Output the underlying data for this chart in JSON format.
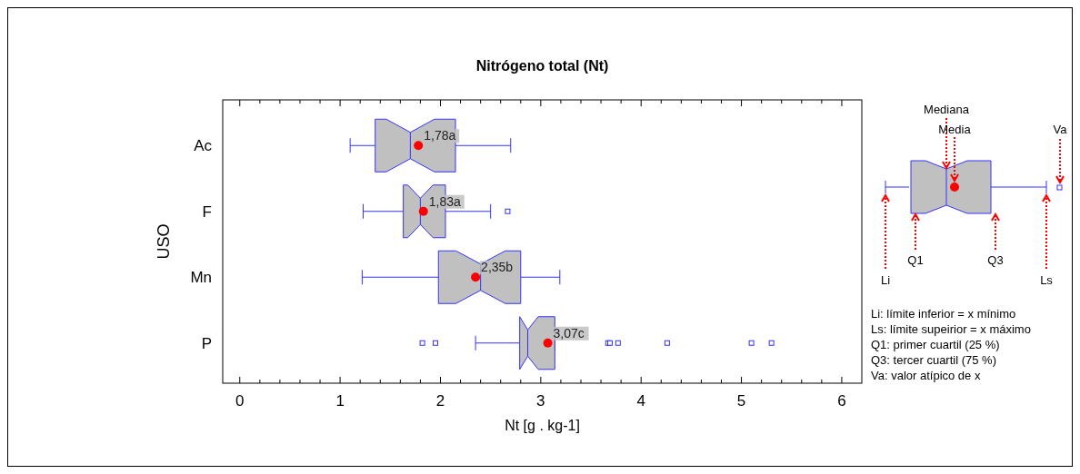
{
  "chart_data": {
    "type": "box",
    "title": "Nitrógeno total (Nt)",
    "xlabel": "Nt [g . kg-1]",
    "ylabel": "USO",
    "orientation": "horizontal",
    "categories": [
      "Ac",
      "F",
      "Mn",
      "P"
    ],
    "color": "#c0c0c0",
    "boxes": [
      {
        "low": 1.1,
        "q1": 1.35,
        "median": 1.7,
        "q3": 2.15,
        "high": 2.7,
        "mean": 1.78
      },
      {
        "low": 1.23,
        "q1": 1.63,
        "median": 1.8,
        "q3": 2.05,
        "high": 2.5,
        "mean": 1.83,
        "outliers": [
          2.67
        ]
      },
      {
        "low": 1.22,
        "q1": 1.98,
        "median": 2.4,
        "q3": 2.8,
        "high": 3.19,
        "mean": 2.35
      },
      {
        "low": 2.35,
        "q1": 2.79,
        "median": 2.87,
        "q3": 3.14,
        "high": 3.14,
        "mean": 3.07,
        "outliers": [
          1.82,
          1.95,
          3.67,
          3.69,
          3.77,
          4.26,
          5.1,
          5.3
        ]
      }
    ],
    "xlim": [
      -0.17,
      6.2
    ],
    "xticks": [
      0,
      {
        "value": 0.2,
        "label": null
      },
      {
        "value": 0.4,
        "label": null
      },
      {
        "value": 0.6,
        "label": null
      },
      {
        "value": 0.8,
        "label": null
      },
      1,
      {
        "value": 1.2,
        "label": null
      },
      {
        "value": 1.4,
        "label": null
      },
      {
        "value": 1.6,
        "label": null
      },
      {
        "value": 1.8,
        "label": null
      },
      2,
      {
        "value": 2.2,
        "label": null
      },
      {
        "value": 2.4,
        "label": null
      },
      {
        "value": 2.6,
        "label": null
      },
      {
        "value": 2.8,
        "label": null
      },
      3,
      {
        "value": 3.2,
        "label": null
      },
      {
        "value": 3.4,
        "label": null
      },
      {
        "value": 3.6,
        "label": null
      },
      {
        "value": 3.8,
        "label": null
      },
      4,
      {
        "value": 4.2,
        "label": null
      },
      {
        "value": 4.4,
        "label": null
      },
      {
        "value": 4.6,
        "label": null
      },
      {
        "value": 4.8,
        "label": null
      },
      5,
      {
        "value": 5.2,
        "label": null
      },
      {
        "value": 5.4,
        "label": null
      },
      {
        "value": 5.6,
        "label": null
      },
      {
        "value": 5.8,
        "label": null
      },
      6
    ],
    "annotations": [
      "1,78a",
      "1,83a",
      "2,35b",
      "3,07c",
      "Mediana",
      "Media",
      "Va",
      "Q1",
      "Q3",
      "Li",
      "Ls",
      "Li: límite inferior = x mínimo",
      "Ls: límite supeirior = x máximo",
      "Q1: primer cuartil (25 %)",
      "Q3: tercer cuartil (75 %)",
      "Va: valor atípico de x"
    ],
    "grid": false
  }
}
